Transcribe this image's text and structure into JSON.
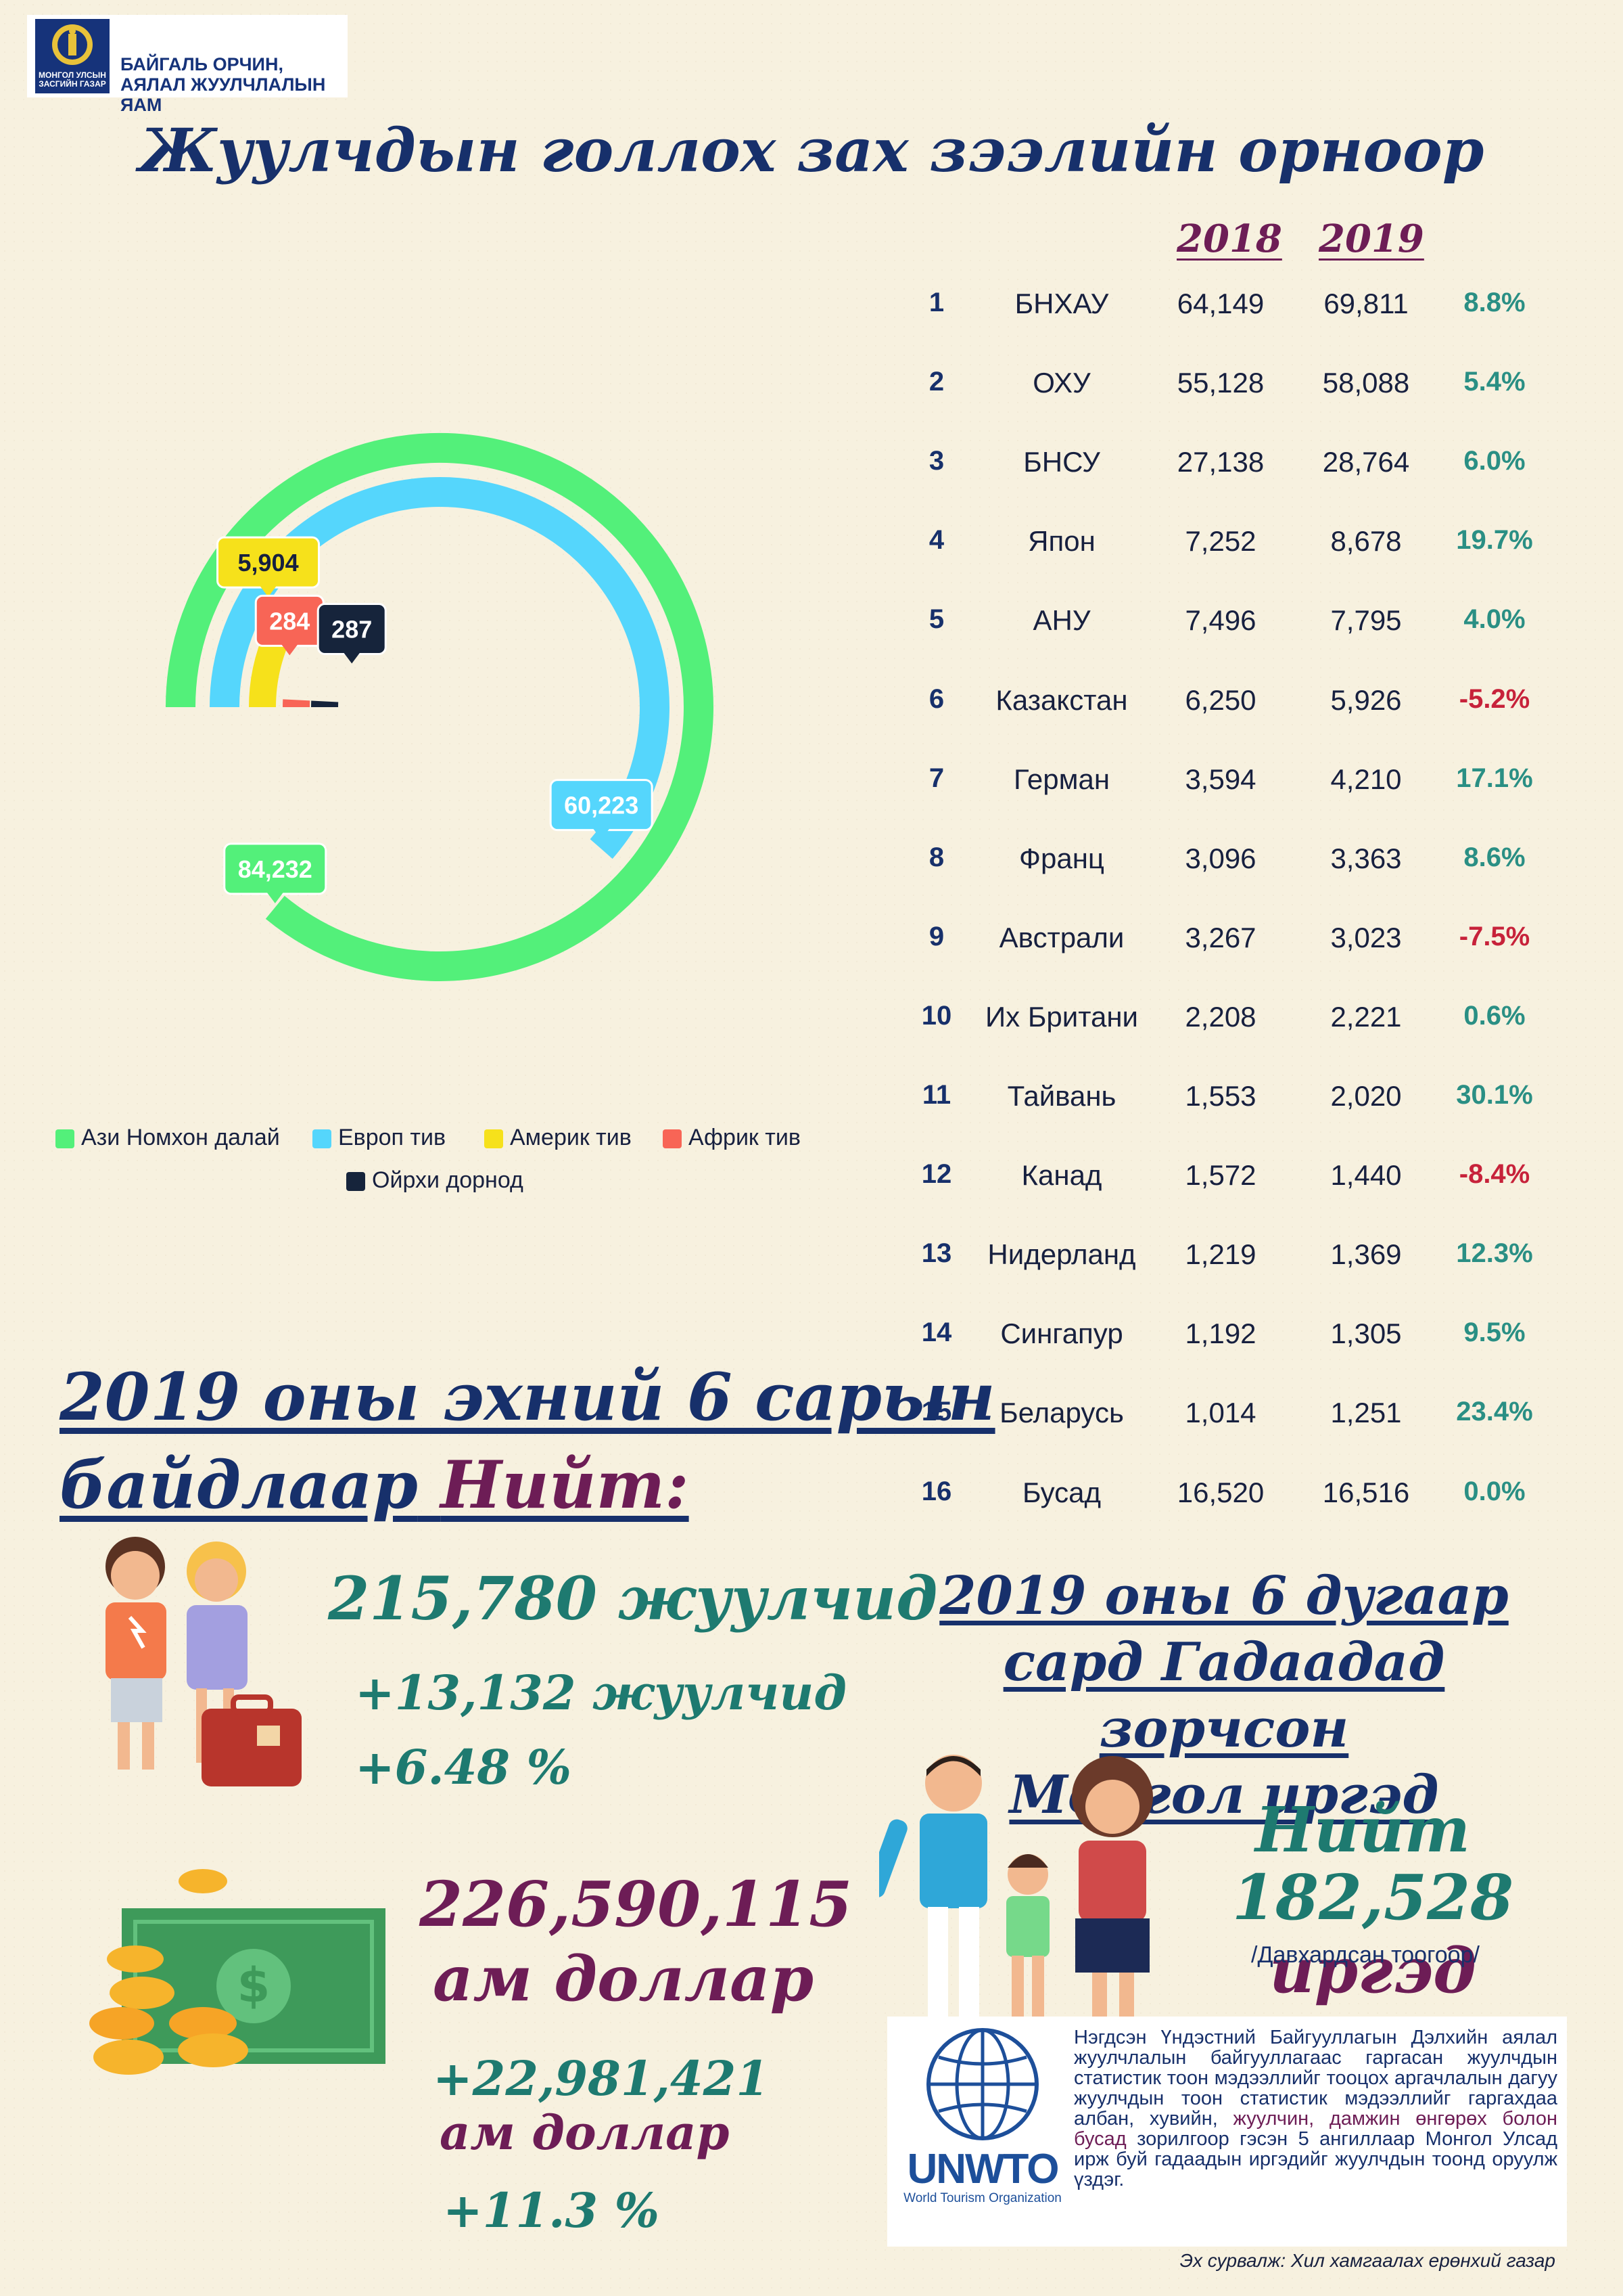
{
  "header": {
    "emblem_text": "МОНГОЛ УЛСЫН ЗАСГИЙН ГАЗАР",
    "ministry": "БАЙГАЛЬ ОРЧИН, АЯЛАЛ ЖУУЛЧЛАЛЫН ЯАМ",
    "title": "Жуулчдын голлох зах зээлийн орноор"
  },
  "colors": {
    "asia": "#53f07a",
    "europe": "#55d6fc",
    "america": "#f6e11b",
    "africa": "#f86556",
    "middle_east": "#16243b",
    "teal": "#2a8f84",
    "negative": "#c7223a",
    "plum": "#6d1d56",
    "navy": "#17306b"
  },
  "chart_data": [
    {
      "type": "donut",
      "labels": [
        "Ази Номхон далай",
        "Европ тив",
        "Америк тив",
        "Африк тив",
        "Ойрхи дорнод"
      ],
      "values": [
        84232,
        60223,
        5904,
        284,
        287
      ],
      "value_labels": [
        "84,232",
        "60,223",
        "5,904",
        "284",
        "287"
      ],
      "legend": "bottom"
    },
    {
      "type": "table",
      "columns": [
        "",
        "",
        "2018",
        "2019",
        ""
      ],
      "rows": [
        {
          "rank": "1",
          "country": "БНХАУ",
          "y2018": "64,149",
          "y2019": "69,811",
          "change": "8.8%"
        },
        {
          "rank": "2",
          "country": "ОХУ",
          "y2018": "55,128",
          "y2019": "58,088",
          "change": "5.4%"
        },
        {
          "rank": "3",
          "country": "БНСУ",
          "y2018": "27,138",
          "y2019": "28,764",
          "change": "6.0%"
        },
        {
          "rank": "4",
          "country": "Япон",
          "y2018": "7,252",
          "y2019": "8,678",
          "change": "19.7%"
        },
        {
          "rank": "5",
          "country": "АНУ",
          "y2018": "7,496",
          "y2019": "7,795",
          "change": "4.0%"
        },
        {
          "rank": "6",
          "country": "Казакстан",
          "y2018": "6,250",
          "y2019": "5,926",
          "change": "-5.2%"
        },
        {
          "rank": "7",
          "country": "Герман",
          "y2018": "3,594",
          "y2019": "4,210",
          "change": "17.1%"
        },
        {
          "rank": "8",
          "country": "Франц",
          "y2018": "3,096",
          "y2019": "3,363",
          "change": "8.6%"
        },
        {
          "rank": "9",
          "country": "Австрали",
          "y2018": "3,267",
          "y2019": "3,023",
          "change": "-7.5%"
        },
        {
          "rank": "10",
          "country": "Их Британи",
          "y2018": "2,208",
          "y2019": "2,221",
          "change": "0.6%"
        },
        {
          "rank": "11",
          "country": "Тайвань",
          "y2018": "1,553",
          "y2019": "2,020",
          "change": "30.1%"
        },
        {
          "rank": "12",
          "country": "Канад",
          "y2018": "1,572",
          "y2019": "1,440",
          "change": "-8.4%"
        },
        {
          "rank": "13",
          "country": "Нидерланд",
          "y2018": "1,219",
          "y2019": "1,369",
          "change": "12.3%"
        },
        {
          "rank": "14",
          "country": "Сингапур",
          "y2018": "1,192",
          "y2019": "1,305",
          "change": "9.5%"
        },
        {
          "rank": "15",
          "country": "Беларусь",
          "y2018": "1,014",
          "y2019": "1,251",
          "change": "23.4%"
        },
        {
          "rank": "16",
          "country": "Бусад",
          "y2018": "16,520",
          "y2019": "16,516",
          "change": "0.0%"
        }
      ]
    }
  ],
  "stats": {
    "heading_line1": "2019 оны эхний 6 сарын",
    "heading_line2": "байдлаар",
    "heading_total": "Нийт:",
    "tourists": "215,780 жуулчид",
    "tourists_delta": "+13,132  жуулчид",
    "tourists_pct": "+6.48 %",
    "revenue_line1": "226,590,115",
    "revenue_line2": "ам доллар",
    "revenue_delta_line1": "+22,981,421",
    "revenue_delta_line2": "ам доллар",
    "revenue_pct": "+11.3 %"
  },
  "outbound": {
    "heading_line1": "2019 оны 6 дугаар",
    "heading_line2": "сард Гадаадад зорчсон",
    "heading_line3": "Монгол иргэд",
    "total_label": "Нийт",
    "total_number": "182,528",
    "total_unit": "иргэд",
    "note": "/Давхардсан тоогоор/"
  },
  "unwto": {
    "logo_text": "UNWTO",
    "logo_subtext": "World Tourism Organization",
    "text_part1": "Нэгдсэн Үндэстний Байгууллагын Дэлхийн аялал жуулчлалын байгууллагаас гаргасан жуулчдын статистик тоон мэдээллийг тооцох аргачлалын дагуу жуулчдын тоон статистик мэдээллийг гаргахдаа албан, хувийн,",
    "text_part2": "жуулчин, дамжин өнгөрөх болон бусад",
    "text_part3": "зорилгоор гэсэн 5 ангиллаар Монгол Улсад ирж буй гадаадын иргэдийг жуулчдын тоонд оруулж үздэг.",
    "source": "Эх сурвалж: Хил хамгаалах ерөнхий газар"
  }
}
